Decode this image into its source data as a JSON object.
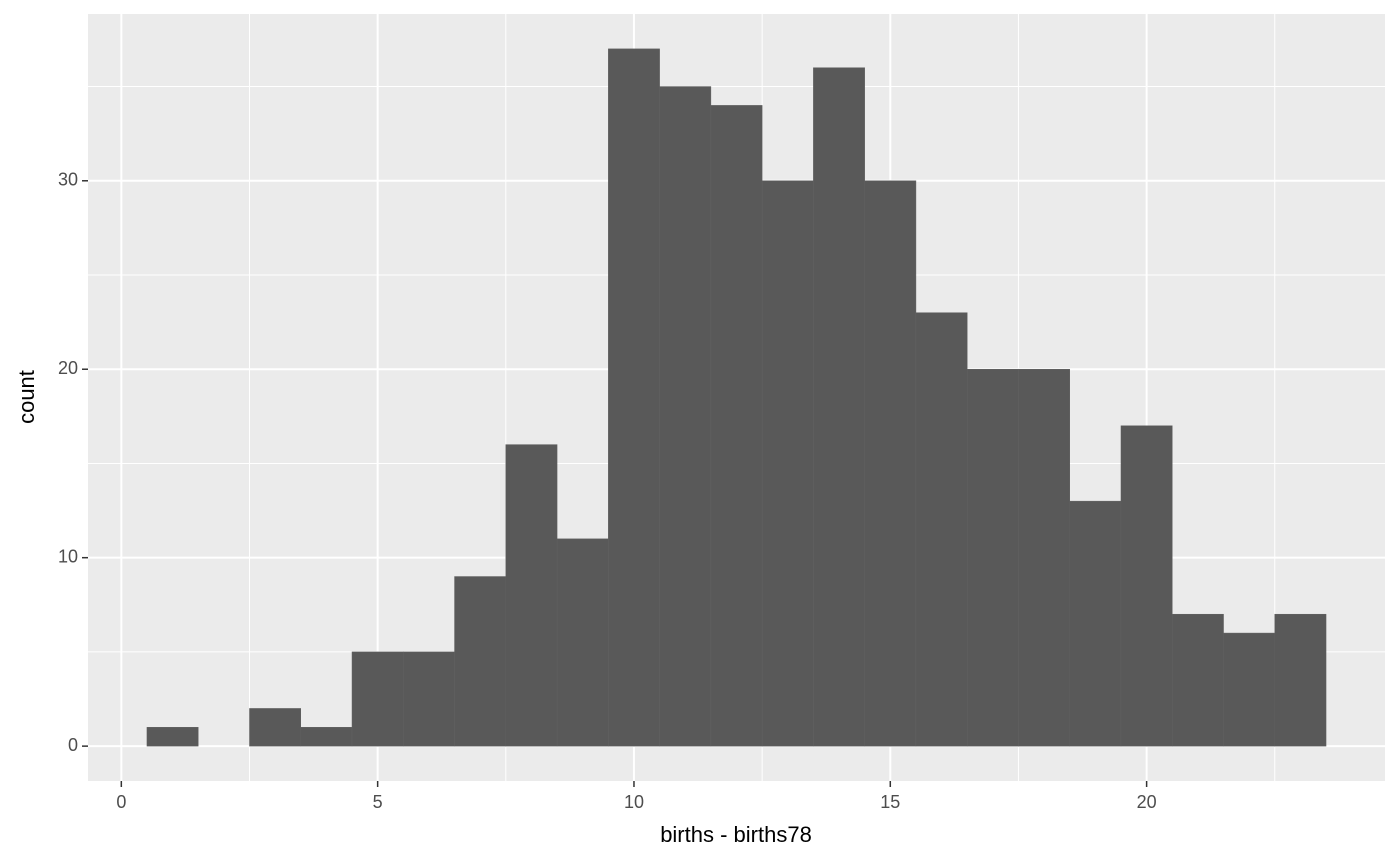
{
  "chart_data": {
    "type": "histogram",
    "x_label": "births - births78",
    "y_label": "count",
    "bins": [
      0.5,
      1.5,
      2.5,
      3.5,
      4.5,
      5.5,
      6.5,
      7.5,
      8.5,
      9.5,
      10.5,
      11.5,
      12.5,
      13.5,
      14.5,
      15.5,
      16.5,
      17.5,
      18.5,
      19.5,
      20.5,
      21.5,
      22.5,
      23.5
    ],
    "values": [
      1,
      0,
      2,
      1,
      5,
      5,
      9,
      16,
      11,
      37,
      35,
      34,
      30,
      36,
      30,
      23,
      20,
      20,
      13,
      17,
      7,
      6,
      7
    ],
    "color": "#595959",
    "xlim": [
      -0.65,
      24.65
    ],
    "ylim": [
      -1.85,
      38.85
    ],
    "xticks": [
      0,
      5,
      10,
      15,
      20
    ],
    "yticks": [
      0,
      10,
      20,
      30
    ],
    "grid": true
  }
}
